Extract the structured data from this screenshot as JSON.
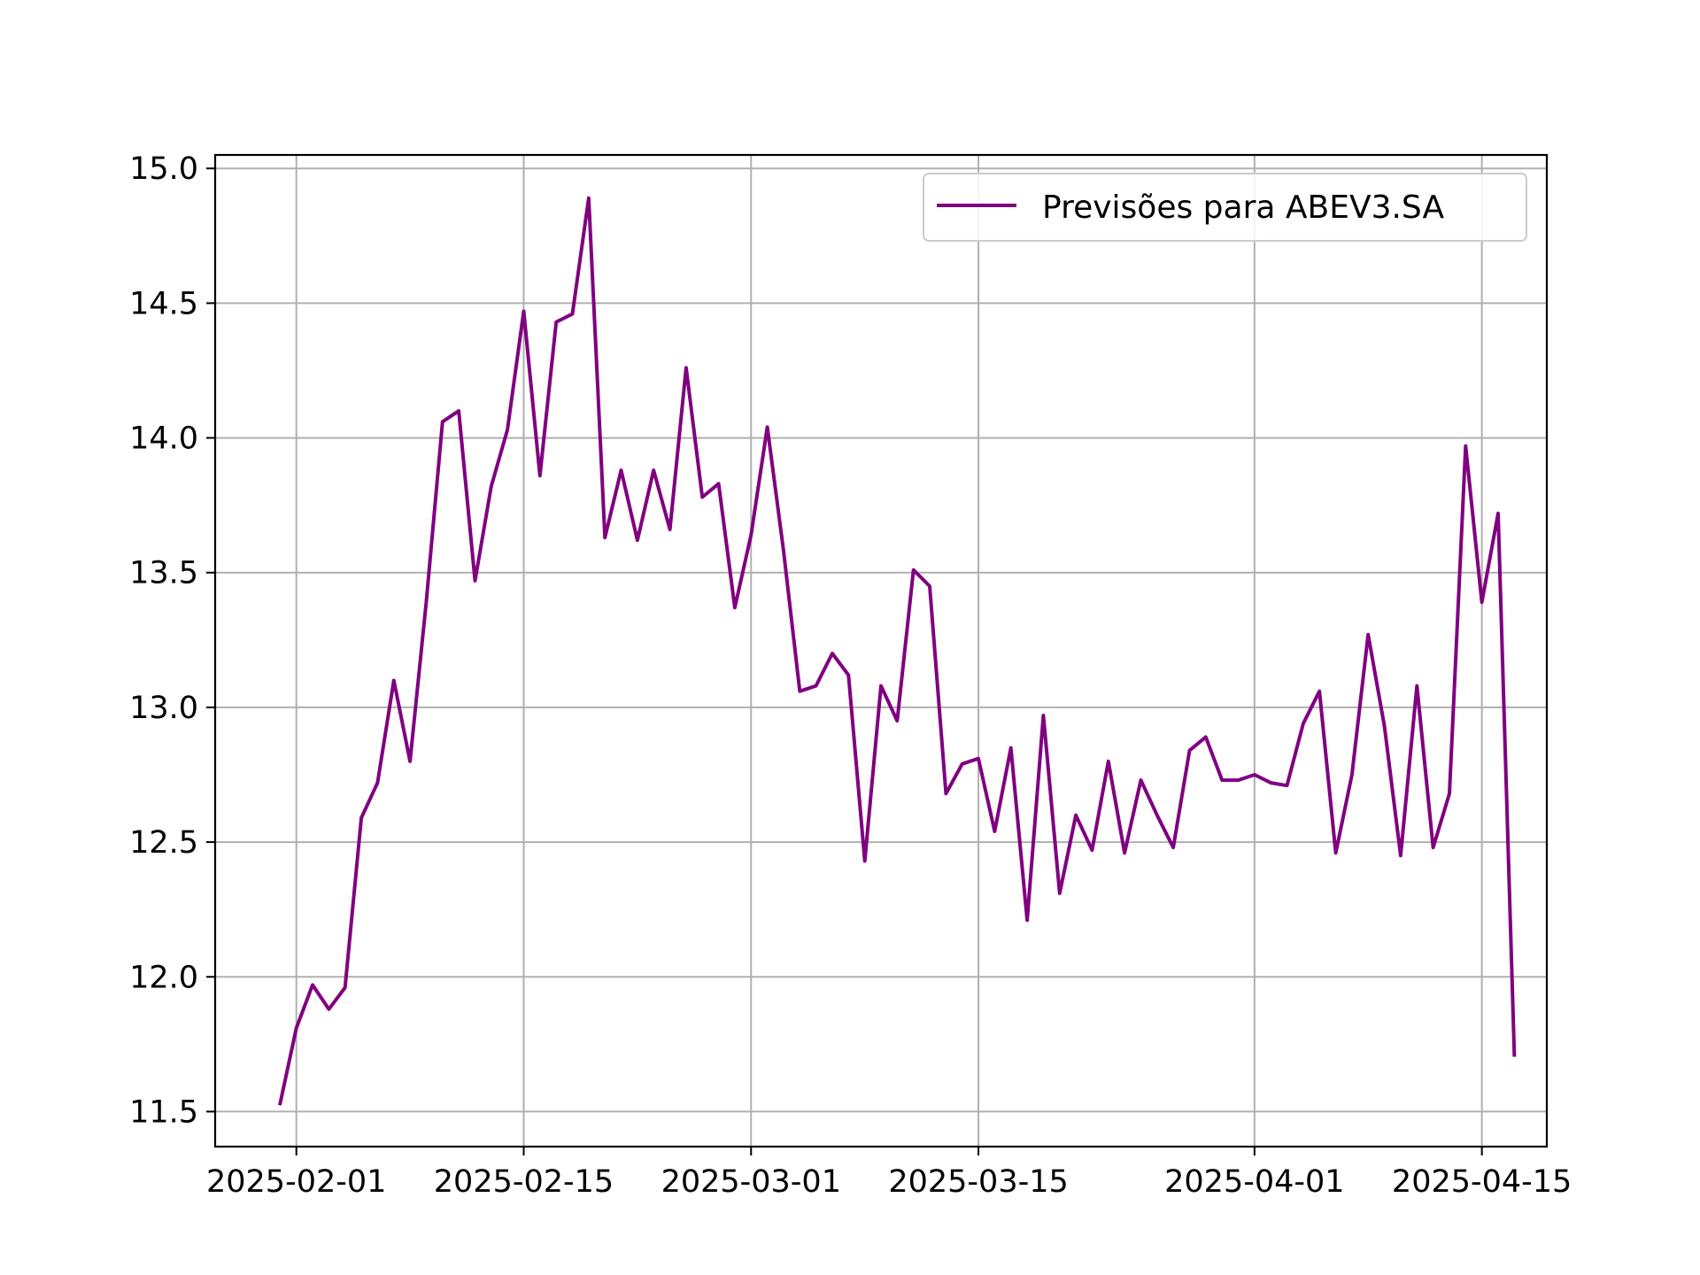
{
  "chart_data": {
    "type": "line",
    "title": "",
    "xlabel": "",
    "ylabel": "",
    "grid": true,
    "legend_position": "top-right",
    "xlim": [
      "2025-01-27",
      "2025-04-19"
    ],
    "ylim": [
      11.37,
      15.05
    ],
    "x_ticks": [
      "2025-02-01",
      "2025-02-15",
      "2025-03-01",
      "2025-03-15",
      "2025-04-01",
      "2025-04-15"
    ],
    "y_ticks": [
      "11.5",
      "12.0",
      "12.5",
      "13.0",
      "13.5",
      "14.0",
      "14.5",
      "15.0"
    ],
    "series": [
      {
        "name": "Previsões para ABEV3.SA",
        "color": "#800080",
        "x": [
          "2025-01-31",
          "2025-02-01",
          "2025-02-02",
          "2025-02-03",
          "2025-02-04",
          "2025-02-05",
          "2025-02-06",
          "2025-02-07",
          "2025-02-08",
          "2025-02-09",
          "2025-02-10",
          "2025-02-11",
          "2025-02-12",
          "2025-02-13",
          "2025-02-14",
          "2025-02-15",
          "2025-02-16",
          "2025-02-17",
          "2025-02-18",
          "2025-02-19",
          "2025-02-20",
          "2025-02-21",
          "2025-02-22",
          "2025-02-23",
          "2025-02-24",
          "2025-02-25",
          "2025-02-26",
          "2025-02-27",
          "2025-02-28",
          "2025-03-01",
          "2025-03-02",
          "2025-03-03",
          "2025-03-04",
          "2025-03-05",
          "2025-03-06",
          "2025-03-07",
          "2025-03-08",
          "2025-03-09",
          "2025-03-10",
          "2025-03-11",
          "2025-03-12",
          "2025-03-13",
          "2025-03-14",
          "2025-03-15",
          "2025-03-16",
          "2025-03-17",
          "2025-03-18",
          "2025-03-19",
          "2025-03-20",
          "2025-03-21",
          "2025-03-22",
          "2025-03-23",
          "2025-03-24",
          "2025-03-25",
          "2025-03-26",
          "2025-03-27",
          "2025-03-28",
          "2025-03-29",
          "2025-03-30",
          "2025-03-31",
          "2025-04-01",
          "2025-04-02",
          "2025-04-03",
          "2025-04-04",
          "2025-04-05",
          "2025-04-06",
          "2025-04-07",
          "2025-04-08",
          "2025-04-09",
          "2025-04-10",
          "2025-04-11",
          "2025-04-12",
          "2025-04-13",
          "2025-04-14",
          "2025-04-15",
          "2025-04-16",
          "2025-04-17"
        ],
        "values": [
          11.53,
          11.81,
          11.97,
          11.88,
          11.96,
          12.59,
          12.72,
          13.1,
          12.8,
          13.39,
          14.06,
          14.1,
          13.47,
          13.82,
          14.03,
          14.47,
          13.86,
          14.43,
          14.46,
          14.89,
          13.63,
          13.88,
          13.62,
          13.88,
          13.66,
          14.26,
          13.78,
          13.83,
          13.37,
          13.64,
          14.04,
          13.58,
          13.06,
          13.08,
          13.2,
          13.12,
          12.43,
          13.08,
          12.95,
          13.51,
          13.45,
          12.68,
          12.79,
          12.81,
          12.54,
          12.85,
          12.21,
          12.97,
          12.31,
          12.6,
          12.47,
          12.8,
          12.46,
          12.73,
          12.6,
          12.48,
          12.84,
          12.89,
          12.73,
          12.73,
          12.75,
          12.72,
          12.71,
          12.94,
          13.06,
          12.46,
          12.75,
          13.27,
          12.93,
          12.45,
          13.08,
          12.48,
          12.68,
          13.97,
          13.39,
          13.72,
          11.71
        ]
      }
    ]
  }
}
